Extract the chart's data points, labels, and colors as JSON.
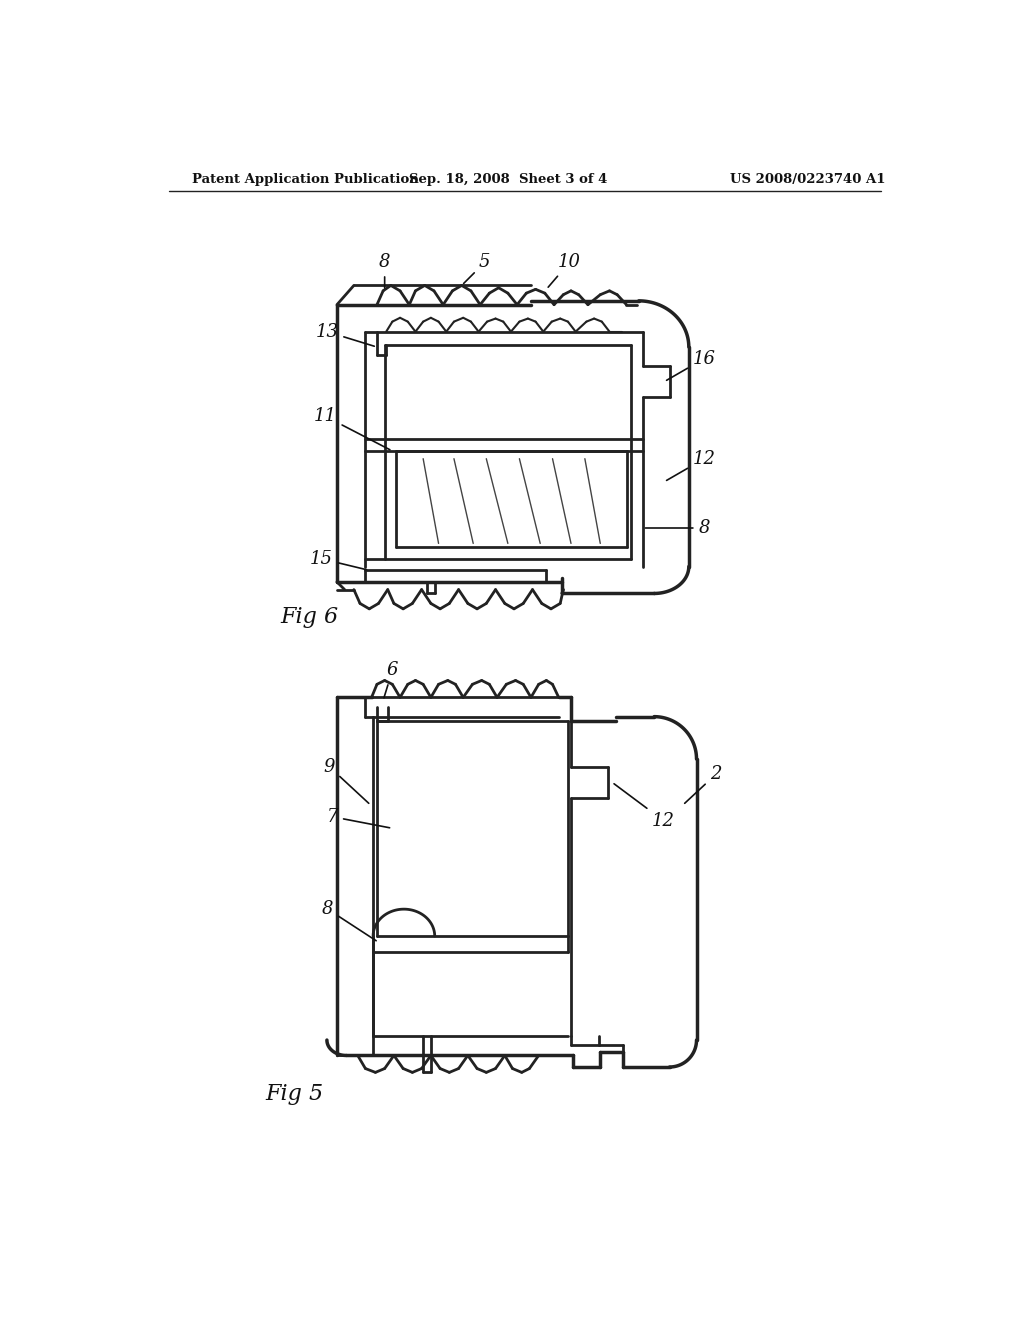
{
  "bg_color": "#ffffff",
  "line_color": "#222222",
  "header_left": "Patent Application Publication",
  "header_mid": "Sep. 18, 2008  Sheet 3 of 4",
  "header_right": "US 2008/0223740 A1",
  "fig6_label": "Fig 6",
  "fig5_label": "Fig 5"
}
